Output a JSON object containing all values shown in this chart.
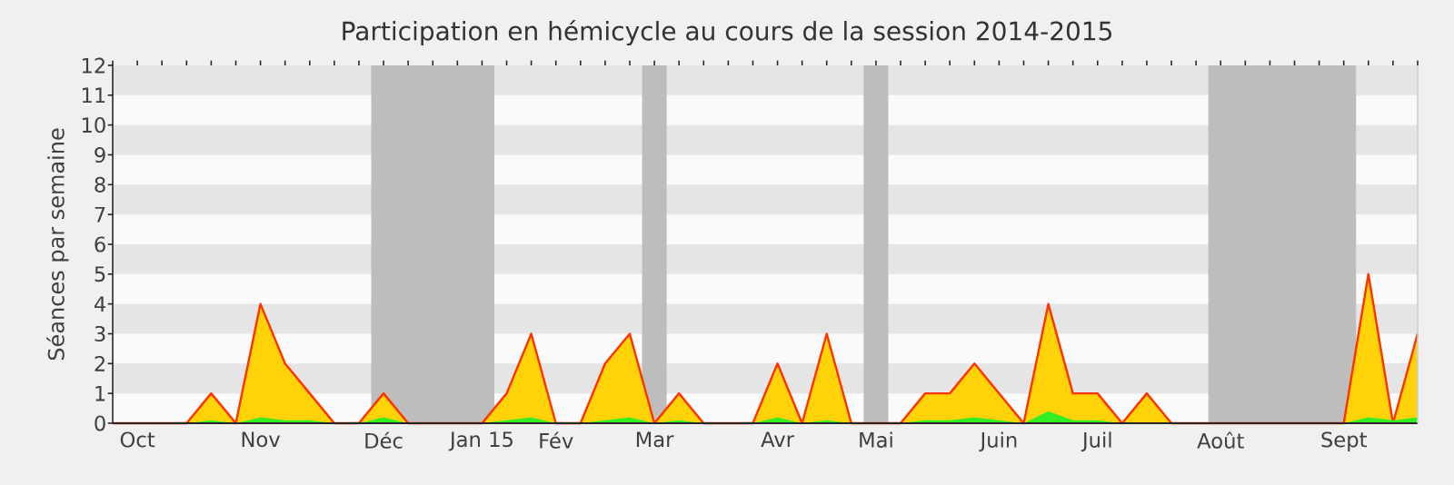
{
  "chart_data": {
    "type": "area",
    "title": "Participation en hémicycle au cours de la session 2014-2015",
    "ylabel": "Séances par semaine",
    "categories": [
      null,
      "Oct",
      null,
      null,
      null,
      null,
      "Nov",
      null,
      null,
      null,
      null,
      "Déc",
      null,
      null,
      null,
      "Jan 15",
      null,
      null,
      "Fév",
      null,
      null,
      null,
      "Mar",
      null,
      null,
      null,
      null,
      "Avr",
      null,
      null,
      null,
      "Mai",
      null,
      null,
      null,
      null,
      "Juin",
      null,
      null,
      null,
      "Juil",
      null,
      null,
      null,
      null,
      "Août",
      null,
      null,
      null,
      null,
      "Sept",
      null,
      null,
      null
    ],
    "series": [
      {
        "color": "#ffd20a",
        "values": [
          0,
          0,
          0,
          0,
          1,
          0,
          4,
          2,
          1,
          0,
          0,
          1,
          0,
          0,
          0,
          0,
          1,
          3,
          0,
          0,
          2,
          3,
          0,
          1,
          0,
          0,
          0,
          2,
          0,
          3,
          0,
          0,
          0,
          1,
          1,
          2,
          1,
          0,
          4,
          1,
          1,
          0,
          1,
          0,
          0,
          0,
          0,
          0,
          0,
          0,
          0,
          5,
          0,
          3
        ]
      },
      {
        "color": "#33ee22",
        "values": [
          0,
          0,
          0,
          0,
          0.1,
          0,
          0.2,
          0.1,
          0.1,
          0,
          0,
          0.2,
          0,
          0,
          0,
          0,
          0.1,
          0.2,
          0,
          0,
          0.1,
          0.2,
          0,
          0.1,
          0,
          0,
          0,
          0.2,
          0,
          0.1,
          0,
          0,
          0,
          0.1,
          0.1,
          0.2,
          0.1,
          0,
          0.4,
          0.1,
          0.1,
          0,
          0,
          0,
          0,
          0,
          0,
          0,
          0,
          0,
          0,
          0.2,
          0.1,
          0.2
        ]
      }
    ],
    "ylim": [
      0,
      12
    ],
    "yticks": [
      0,
      1,
      2,
      3,
      4,
      5,
      6,
      7,
      8,
      9,
      10,
      11,
      12
    ],
    "bands": [
      {
        "axis": "x",
        "from": "Déc",
        "to": "Jan 15",
        "color": "#bdbdbd"
      },
      {
        "axis": "x",
        "from": "Mar",
        "to": "Mar",
        "color": "#bdbdbd"
      },
      {
        "axis": "x",
        "from": "Mai",
        "to": "Mai",
        "color": "#bdbdbd"
      },
      {
        "axis": "x",
        "from": "Août",
        "to": "Sept",
        "color": "#bdbdbd"
      }
    ]
  }
}
